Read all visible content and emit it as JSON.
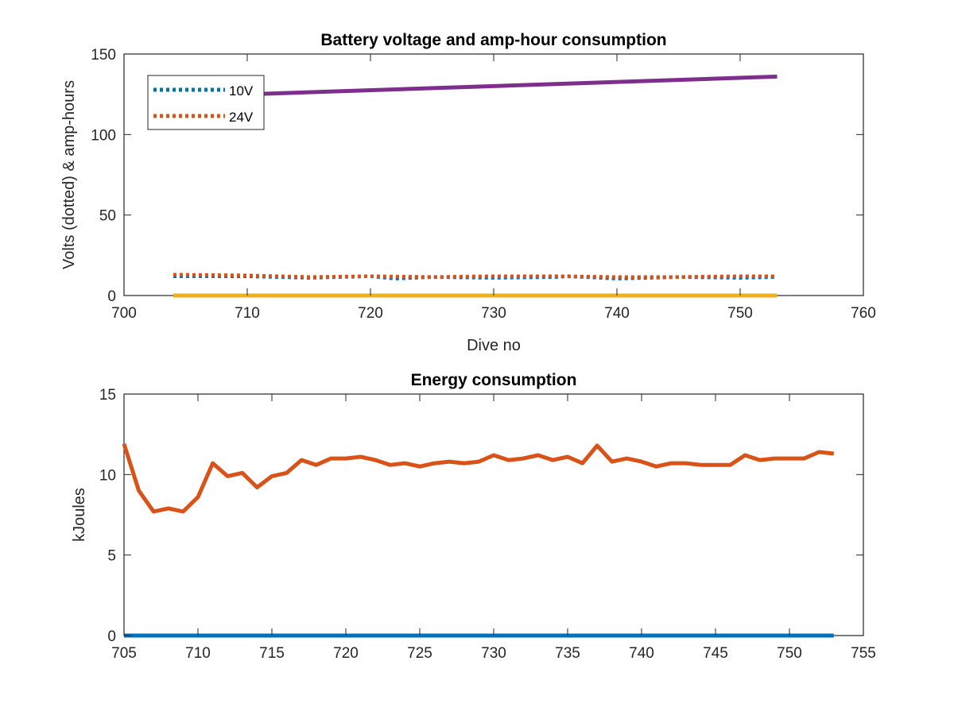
{
  "chart_data": [
    {
      "type": "line",
      "title": "Battery voltage and amp-hour consumption",
      "xlabel": "Dive no",
      "ylabel": "Volts (dotted) & amp-hours",
      "xlim": [
        700,
        760
      ],
      "ylim": [
        0,
        150
      ],
      "xticks": [
        "700",
        "710",
        "720",
        "730",
        "740",
        "750",
        "760"
      ],
      "yticks": [
        "0",
        "50",
        "100",
        "150"
      ],
      "legend": {
        "placement": "top-left",
        "entries": [
          "10V",
          "24V"
        ]
      },
      "series": [
        {
          "name": "10V",
          "style": "dotted",
          "color": "#0072BD",
          "x": [
            704,
            710,
            715,
            720,
            722,
            725,
            730,
            735,
            736,
            740,
            745,
            750,
            753
          ],
          "y": [
            12,
            12,
            11,
            12,
            10.5,
            11.5,
            11,
            11.5,
            12,
            10.5,
            11.5,
            11,
            11.5
          ]
        },
        {
          "name": "24V",
          "style": "dotted",
          "color": "#D95319",
          "x": [
            704,
            710,
            715,
            720,
            725,
            730,
            735,
            740,
            745,
            750,
            753
          ],
          "y": [
            13,
            12.5,
            11.5,
            12,
            11.5,
            12,
            12,
            11.5,
            11.5,
            12,
            12
          ]
        },
        {
          "style": "solid",
          "color": "#7E2F8E",
          "x": [
            710,
            753
          ],
          "y": [
            125,
            136
          ]
        },
        {
          "style": "solid",
          "color": "#EDB120",
          "x": [
            704,
            753
          ],
          "y": [
            0,
            0
          ]
        }
      ]
    },
    {
      "type": "line",
      "title": "Energy consumption",
      "xlabel": "",
      "ylabel": "kJoules",
      "xlim": [
        705,
        755
      ],
      "ylim": [
        0,
        15
      ],
      "xticks": [
        "705",
        "710",
        "715",
        "720",
        "725",
        "730",
        "735",
        "740",
        "745",
        "750",
        "755"
      ],
      "yticks": [
        "0",
        "5",
        "10",
        "15"
      ],
      "series": [
        {
          "style": "solid",
          "color": "#D95319",
          "x": [
            705,
            706,
            707,
            708,
            709,
            710,
            711,
            712,
            713,
            714,
            715,
            716,
            717,
            718,
            719,
            720,
            721,
            722,
            723,
            724,
            725,
            726,
            727,
            728,
            729,
            730,
            731,
            732,
            733,
            734,
            735,
            736,
            737,
            738,
            739,
            740,
            741,
            742,
            743,
            744,
            745,
            746,
            747,
            748,
            749,
            750,
            751,
            752,
            753
          ],
          "y": [
            11.9,
            9.0,
            7.7,
            7.9,
            7.7,
            8.6,
            10.7,
            9.9,
            10.1,
            9.2,
            9.9,
            10.1,
            10.9,
            10.6,
            11.0,
            11.0,
            11.1,
            10.9,
            10.6,
            10.7,
            10.5,
            10.7,
            10.8,
            10.7,
            10.8,
            11.2,
            10.9,
            11.0,
            11.2,
            10.9,
            11.1,
            10.7,
            11.8,
            10.8,
            11.0,
            10.8,
            10.5,
            10.7,
            10.7,
            10.6,
            10.6,
            10.6,
            11.2,
            10.9,
            11.0,
            11.0,
            11.0,
            11.4,
            11.3
          ]
        },
        {
          "style": "solid",
          "color": "#0072BD",
          "x": [
            705,
            753
          ],
          "y": [
            0,
            0
          ]
        }
      ]
    }
  ]
}
